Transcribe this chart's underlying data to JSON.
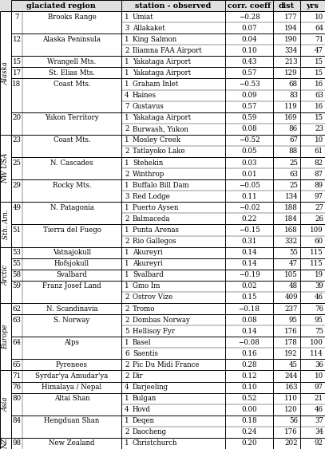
{
  "regions": [
    {
      "group": "Alaska",
      "id": "7",
      "name": "Brooks Range",
      "stations": [
        {
          "num": "1",
          "name": "Umiat",
          "corr": "−0.28",
          "dist": "177",
          "yrs": "10"
        },
        {
          "num": "3",
          "name": "Allakaket",
          "corr": "0.07",
          "dist": "194",
          "yrs": "64"
        }
      ]
    },
    {
      "group": "Alaska",
      "id": "12",
      "name": "Alaska Peninsula",
      "stations": [
        {
          "num": "1",
          "name": "King Salmon",
          "corr": "0.04",
          "dist": "190",
          "yrs": "71"
        },
        {
          "num": "2",
          "name": "Iliamna FAA Airport",
          "corr": "0.10",
          "dist": "334",
          "yrs": "47"
        }
      ]
    },
    {
      "group": "Alaska",
      "id": "15",
      "name": "Wrangell Mts.",
      "stations": [
        {
          "num": "1",
          "name": "Yakataga Airport",
          "corr": "0.43",
          "dist": "213",
          "yrs": "15"
        }
      ]
    },
    {
      "group": "Alaska",
      "id": "17",
      "name": "St. Elias Mts.",
      "stations": [
        {
          "num": "1",
          "name": "Yakataga Airport",
          "corr": "0.57",
          "dist": "129",
          "yrs": "15"
        }
      ]
    },
    {
      "group": "Alaska",
      "id": "18",
      "name": "Coast Mts.",
      "stations": [
        {
          "num": "1",
          "name": "Graham Inlet",
          "corr": "−0.53",
          "dist": "68",
          "yrs": "16"
        },
        {
          "num": "4",
          "name": "Haines",
          "corr": "0.09",
          "dist": "83",
          "yrs": "63"
        },
        {
          "num": "7",
          "name": "Gustavus",
          "corr": "0.57",
          "dist": "119",
          "yrs": "16"
        }
      ]
    },
    {
      "group": "Alaska",
      "id": "20",
      "name": "Yukon Territory",
      "stations": [
        {
          "num": "1",
          "name": "Yakataga Airport",
          "corr": "0.59",
          "dist": "169",
          "yrs": "15"
        },
        {
          "num": "2",
          "name": "Burwash, Yukon",
          "corr": "0.08",
          "dist": "86",
          "yrs": "23"
        }
      ]
    },
    {
      "group": "NW USA",
      "id": "23",
      "name": "Coast Mts.",
      "stations": [
        {
          "num": "1",
          "name": "Mosley Creek",
          "corr": "−0.52",
          "dist": "67",
          "yrs": "10"
        },
        {
          "num": "2",
          "name": "Tatlayoko Lake",
          "corr": "0.05",
          "dist": "88",
          "yrs": "61"
        }
      ]
    },
    {
      "group": "NW USA",
      "id": "25",
      "name": "N. Cascades",
      "stations": [
        {
          "num": "1",
          "name": "Stehekin",
          "corr": "0.03",
          "dist": "25",
          "yrs": "82"
        },
        {
          "num": "2",
          "name": "Winthrop",
          "corr": "0.01",
          "dist": "63",
          "yrs": "87"
        }
      ]
    },
    {
      "group": "NW USA",
      "id": "29",
      "name": "Rocky Mts.",
      "stations": [
        {
          "num": "1",
          "name": "Buffalo Bill Dam",
          "corr": "−0.05",
          "dist": "25",
          "yrs": "89"
        },
        {
          "num": "3",
          "name": "Red Lodge",
          "corr": "0.11",
          "dist": "134",
          "yrs": "97"
        }
      ]
    },
    {
      "group": "Sth. Am.",
      "id": "49",
      "name": "N. Patagonia",
      "stations": [
        {
          "num": "1",
          "name": "Puerto Aysen",
          "corr": "−0.02",
          "dist": "188",
          "yrs": "27"
        },
        {
          "num": "2",
          "name": "Balmaceda",
          "corr": "0.22",
          "dist": "184",
          "yrs": "26"
        }
      ]
    },
    {
      "group": "Sth. Am.",
      "id": "51",
      "name": "Tierra del Fuego",
      "stations": [
        {
          "num": "1",
          "name": "Punta Arenas",
          "corr": "−0.15",
          "dist": "168",
          "yrs": "109"
        },
        {
          "num": "2",
          "name": "Rio Gallegos",
          "corr": "0.31",
          "dist": "332",
          "yrs": "60"
        }
      ]
    },
    {
      "group": "Arctic",
      "id": "53",
      "name": "Vatnajokull",
      "stations": [
        {
          "num": "1",
          "name": "Akureyri",
          "corr": "0.14",
          "dist": "55",
          "yrs": "115"
        }
      ]
    },
    {
      "group": "Arctic",
      "id": "55",
      "name": "Hofsjokull",
      "stations": [
        {
          "num": "1",
          "name": "Akureyri",
          "corr": "0.14",
          "dist": "47",
          "yrs": "115"
        }
      ]
    },
    {
      "group": "Arctic",
      "id": "58",
      "name": "Svalbard",
      "stations": [
        {
          "num": "1",
          "name": "Svalbard",
          "corr": "−0.19",
          "dist": "105",
          "yrs": "19"
        }
      ]
    },
    {
      "group": "Arctic",
      "id": "59",
      "name": "Franz Josef Land",
      "stations": [
        {
          "num": "1",
          "name": "Gmo Im",
          "corr": "0.02",
          "dist": "48",
          "yrs": "39"
        },
        {
          "num": "2",
          "name": "Ostrov Vize",
          "corr": "0.15",
          "dist": "409",
          "yrs": "46"
        }
      ]
    },
    {
      "group": "Europe",
      "id": "62",
      "name": "N. Scandinavia",
      "stations": [
        {
          "num": "2",
          "name": "Tromo",
          "corr": "−0.18",
          "dist": "237",
          "yrs": "76"
        }
      ]
    },
    {
      "group": "Europe",
      "id": "63",
      "name": "S. Norway",
      "stations": [
        {
          "num": "2",
          "name": "Dombas Norway",
          "corr": "0.08",
          "dist": "95",
          "yrs": "95"
        },
        {
          "num": "5",
          "name": "Hellisoy Fyr",
          "corr": "0.14",
          "dist": "176",
          "yrs": "75"
        }
      ]
    },
    {
      "group": "Europe",
      "id": "64",
      "name": "Alps",
      "stations": [
        {
          "num": "1",
          "name": "Basel",
          "corr": "−0.08",
          "dist": "178",
          "yrs": "100"
        },
        {
          "num": "6",
          "name": "Saentis",
          "corr": "0.16",
          "dist": "192",
          "yrs": "114"
        }
      ]
    },
    {
      "group": "Europe",
      "id": "65",
      "name": "Pyrenees",
      "stations": [
        {
          "num": "2",
          "name": "Pic Du Midi France",
          "corr": "0.28",
          "dist": "45",
          "yrs": "36"
        }
      ]
    },
    {
      "group": "Asia",
      "id": "71",
      "name": "Syrdar'ya Amudar'ya",
      "stations": [
        {
          "num": "2",
          "name": "Dir",
          "corr": "0.12",
          "dist": "244",
          "yrs": "10"
        }
      ]
    },
    {
      "group": "Asia",
      "id": "76",
      "name": "Himalaya / Nepal",
      "stations": [
        {
          "num": "4",
          "name": "Darjeeling",
          "corr": "0.10",
          "dist": "163",
          "yrs": "97"
        }
      ]
    },
    {
      "group": "Asia",
      "id": "80",
      "name": "Altai Shan",
      "stations": [
        {
          "num": "1",
          "name": "Bulgan",
          "corr": "0.52",
          "dist": "110",
          "yrs": "21"
        },
        {
          "num": "4",
          "name": "Hovd",
          "corr": "0.00",
          "dist": "120",
          "yrs": "46"
        }
      ]
    },
    {
      "group": "Asia",
      "id": "84",
      "name": "Hengduan Shan",
      "stations": [
        {
          "num": "1",
          "name": "Deqen",
          "corr": "0.18",
          "dist": "56",
          "yrs": "37"
        },
        {
          "num": "2",
          "name": "Daocheng",
          "corr": "0.24",
          "dist": "176",
          "yrs": "34"
        }
      ]
    },
    {
      "group": "NZ",
      "id": "98",
      "name": "New Zealand",
      "stations": [
        {
          "num": "1",
          "name": "Christchurch",
          "corr": "0.20",
          "dist": "202",
          "yrs": "92"
        }
      ]
    }
  ],
  "group_order": [
    "Alaska",
    "NW USA",
    "Sth. Am.",
    "Arctic",
    "Europe",
    "Asia",
    "NZ"
  ],
  "font_size": 6.2,
  "header_font_size": 6.8
}
